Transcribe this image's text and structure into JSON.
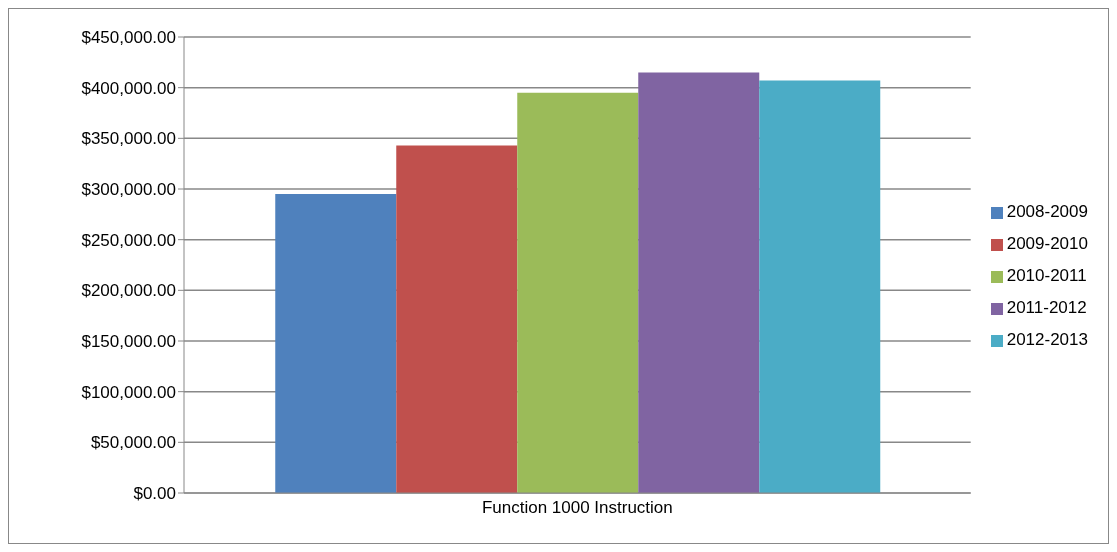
{
  "chart_data": {
    "type": "bar",
    "categories": [
      "Function 1000 Instruction"
    ],
    "series": [
      {
        "name": "2008-2009",
        "color": "#4f81bd",
        "values": [
          295000
        ]
      },
      {
        "name": "2009-2010",
        "color": "#c0504d",
        "values": [
          343000
        ]
      },
      {
        "name": "2010-2011",
        "color": "#9bbb59",
        "values": [
          395000
        ]
      },
      {
        "name": "2011-2012",
        "color": "#8064a2",
        "values": [
          415000
        ]
      },
      {
        "name": "2012-2013",
        "color": "#4bacc6",
        "values": [
          407000
        ]
      }
    ],
    "ylim": [
      0,
      450000
    ],
    "yticks": [
      {
        "value": 0,
        "label": "$0.00"
      },
      {
        "value": 50000,
        "label": "$50,000.00"
      },
      {
        "value": 100000,
        "label": "$100,000.00"
      },
      {
        "value": 150000,
        "label": "$150,000.00"
      },
      {
        "value": 200000,
        "label": "$200,000.00"
      },
      {
        "value": 250000,
        "label": "$250,000.00"
      },
      {
        "value": 300000,
        "label": "$300,000.00"
      },
      {
        "value": 350000,
        "label": "$350,000.00"
      },
      {
        "value": 400000,
        "label": "$400,000.00"
      },
      {
        "value": 450000,
        "label": "$450,000.00"
      }
    ],
    "grid": "y",
    "legend": "right"
  }
}
